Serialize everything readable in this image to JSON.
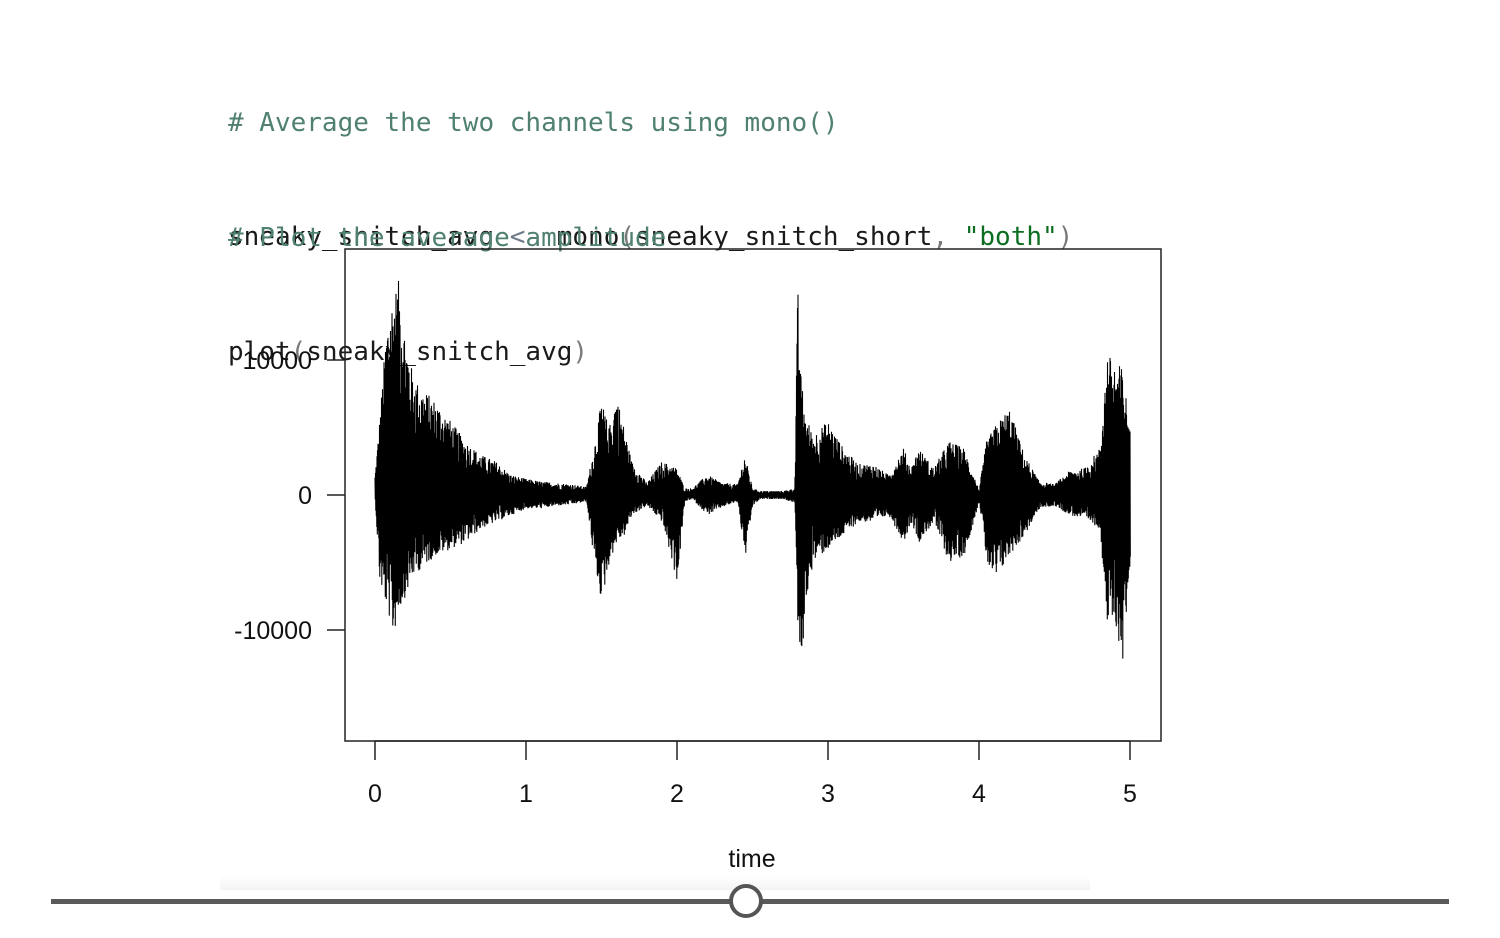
{
  "code": {
    "block1": {
      "comment": "# Average the two channels using mono()",
      "lhs": "sneaky_snitch_avg",
      "assign": "<-",
      "func": "mono",
      "open": "(",
      "arg1": "sneaky_snitch_short",
      "comma": ",",
      "arg2": "\"both\"",
      "close": ")"
    },
    "block2": {
      "comment": "# Plot the average amplitude",
      "func": "plot",
      "open": "(",
      "arg1": "sneaky_snitch_avg",
      "close": ")"
    }
  },
  "chart_data": {
    "type": "line",
    "title": "",
    "xlabel": "time",
    "ylabel": "",
    "xlim": [
      -0.2,
      5.2
    ],
    "ylim": [
      -18000,
      18000
    ],
    "x_ticks": [
      0,
      1,
      2,
      3,
      4,
      5
    ],
    "x_tick_labels": [
      "0",
      "1",
      "2",
      "3",
      "4",
      "5"
    ],
    "y_ticks": [
      10000,
      0,
      -10000
    ],
    "y_tick_labels": [
      "10000",
      "0",
      "-10000"
    ],
    "grid": false,
    "legend": "none",
    "line_color": "#000000",
    "series": [
      {
        "x": [
          0.0,
          0.03,
          0.08,
          0.12,
          0.16,
          0.2,
          0.25,
          0.3,
          0.4,
          0.5,
          0.6,
          0.7,
          0.8,
          0.9,
          1.0,
          1.1,
          1.2,
          1.3,
          1.4,
          1.45,
          1.5,
          1.55,
          1.6,
          1.65,
          1.7,
          1.8,
          1.9,
          2.0,
          2.05,
          2.1,
          2.2,
          2.3,
          2.4,
          2.45,
          2.5,
          2.55,
          2.6,
          2.7,
          2.78,
          2.8,
          2.82,
          2.85,
          2.9,
          3.0,
          3.1,
          3.2,
          3.3,
          3.4,
          3.5,
          3.55,
          3.6,
          3.7,
          3.8,
          3.9,
          4.0,
          4.05,
          4.1,
          4.2,
          4.3,
          4.4,
          4.5,
          4.6,
          4.7,
          4.8,
          4.85,
          4.9,
          4.95,
          5.0
        ],
        "envelope_upper": [
          1500,
          5500,
          13000,
          15000,
          16000,
          12000,
          9000,
          8000,
          7000,
          5500,
          4000,
          3000,
          2500,
          1500,
          1200,
          1000,
          900,
          800,
          600,
          3500,
          7000,
          5000,
          7500,
          5000,
          2500,
          900,
          2500,
          2000,
          500,
          500,
          1500,
          900,
          800,
          3000,
          500,
          300,
          300,
          300,
          500,
          15500,
          9000,
          6000,
          4500,
          5500,
          3500,
          2300,
          2300,
          1500,
          3500,
          2000,
          3500,
          2000,
          4000,
          3500,
          400,
          4000,
          5000,
          6500,
          3000,
          1000,
          800,
          1800,
          2000,
          3500,
          10500,
          9800,
          9500,
          5000
        ],
        "envelope_lower": [
          -500,
          -6500,
          -8500,
          -10500,
          -8500,
          -7500,
          -6000,
          -5500,
          -4500,
          -4000,
          -3500,
          -2500,
          -2000,
          -1500,
          -1000,
          -1000,
          -800,
          -700,
          -500,
          -5000,
          -8000,
          -5000,
          -3500,
          -3000,
          -1500,
          -800,
          -2000,
          -6500,
          -500,
          -300,
          -1500,
          -900,
          -500,
          -4700,
          -800,
          -300,
          -300,
          -300,
          -600,
          -11000,
          -13500,
          -8000,
          -5000,
          -4000,
          -3000,
          -2000,
          -2000,
          -1500,
          -3500,
          -2000,
          -3500,
          -2000,
          -5000,
          -4500,
          -500,
          -5000,
          -6500,
          -4500,
          -3000,
          -1000,
          -800,
          -1500,
          -1800,
          -2500,
          -10000,
          -9500,
          -12500,
          -5000
        ]
      }
    ]
  }
}
